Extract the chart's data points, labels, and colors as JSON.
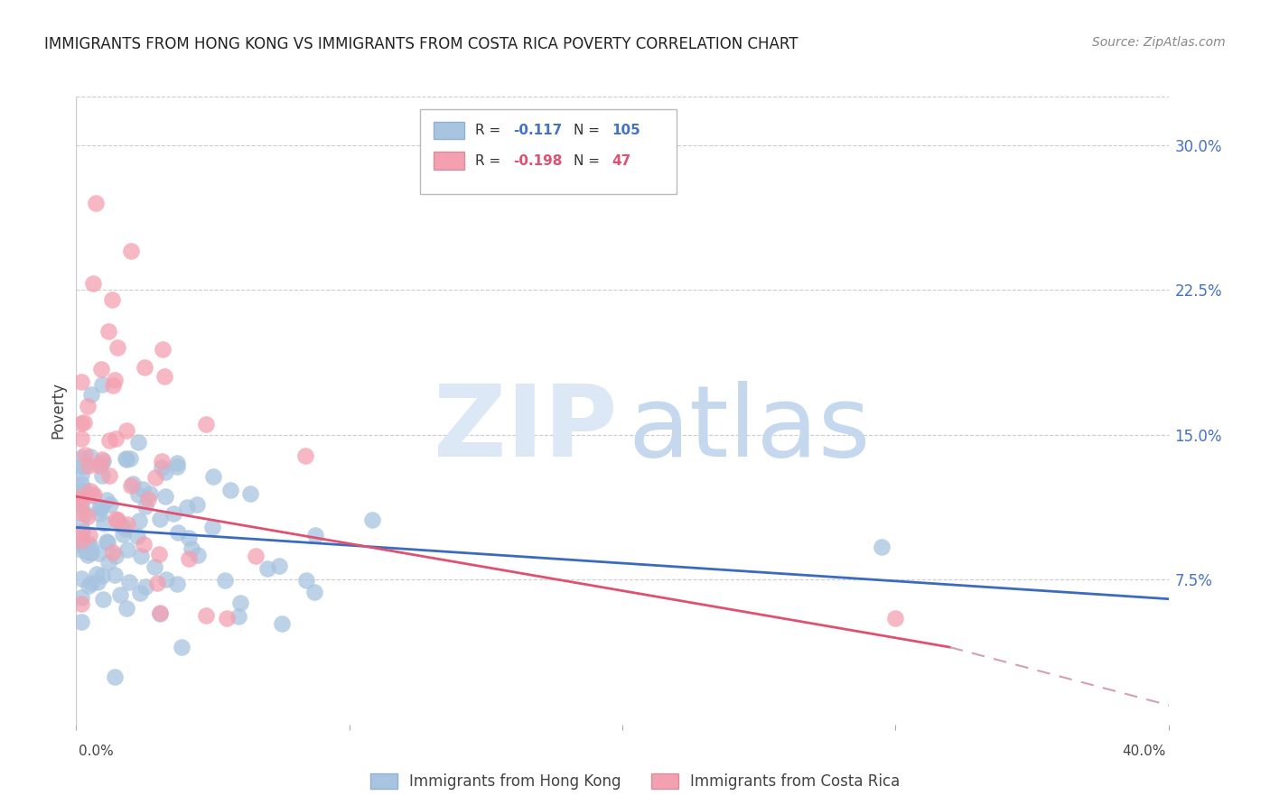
{
  "title": "IMMIGRANTS FROM HONG KONG VS IMMIGRANTS FROM COSTA RICA POVERTY CORRELATION CHART",
  "source": "Source: ZipAtlas.com",
  "ylabel": "Poverty",
  "ytick_labels": [
    "7.5%",
    "15.0%",
    "22.5%",
    "30.0%"
  ],
  "ytick_values": [
    0.075,
    0.15,
    0.225,
    0.3
  ],
  "xlim": [
    0.0,
    0.4
  ],
  "ylim": [
    0.0,
    0.325
  ],
  "hk_color": "#a8c4e0",
  "cr_color": "#f4a0b0",
  "hk_line_color": "#3a6bbf",
  "cr_line_color": "#e05070",
  "cr_line_dashed_color": "#d4a0b0",
  "legend_hk_R": "-0.117",
  "legend_hk_N": "105",
  "legend_cr_R": "-0.198",
  "legend_cr_N": "47",
  "watermark_color": "#dce8f5",
  "watermark_color2": "#c5d8ee",
  "background_color": "#ffffff",
  "grid_color": "#cccccc"
}
